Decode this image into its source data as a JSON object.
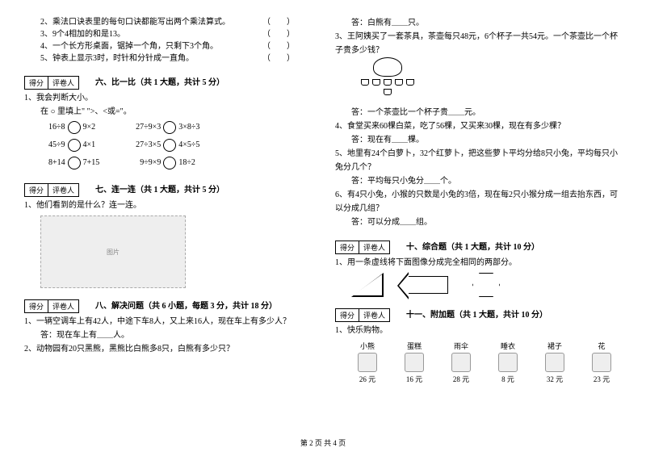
{
  "left": {
    "statements": [
      "2、乘法口诀表里的每句口诀都能写出两个乘法算式。",
      "3、9个4相加的和是13。",
      "4、一个长方形桌面，锯掉一个角，只剩下3个角。",
      "5、钟表上显示3时，时针和分针成一直角。"
    ],
    "sec6": {
      "title": "六、比一比（共 1 大题，共计 5 分）",
      "q1": "1、我会判断大小。",
      "hint": "在 ○ 里填上\" \">、<或=\"。"
    },
    "comp": [
      [
        "16÷8",
        "9×2",
        "27÷9×3",
        "3×8÷3"
      ],
      [
        "45÷9",
        "4×1",
        "27÷3×5",
        "4×5÷5"
      ],
      [
        "8+14",
        "7+15",
        "9÷9×9",
        "18÷2"
      ]
    ],
    "sec7": {
      "title": "七、连一连（共 1 大题，共计 5 分）",
      "q1": "1、他们看到的是什么？连一连。"
    },
    "sec8": {
      "title": "八、解决问题（共 6 小题，每题 3 分，共计 18 分）",
      "q1": "1、一辆空调车上有42人，中途下车8人，又上来16人，现在车上有多少人？",
      "a1": "答：现在车上有＿＿人。",
      "q2": "2、动物园有20只黑熊，黑熊比白熊多8只，白熊有多少只？"
    }
  },
  "right": {
    "a2": "答：白熊有＿＿只。",
    "q3": "3、王阿姨买了一套茶具，茶壶每只48元，6个杯子一共54元。一个茶壶比一个杯子贵多少钱？",
    "a3": "答：一个茶壶比一个杯子贵＿＿元。",
    "q4": "4、食堂买来60棵白菜，吃了56棵，又买来30棵，现在有多少棵？",
    "a4": "答：现在有＿＿棵。",
    "q5": "5、地里有24个白萝卜，32个红萝卜，把这些萝卜平均分给8只小兔，平均每只小兔分几个？",
    "a5": "答：平均每只小兔分＿＿个。",
    "q6": "6、有4只小兔，小猴的只数是小兔的3倍，现在每2只小猴分成一组去抬东西，可以分成几组？",
    "a6": "答：可以分成＿＿组。",
    "sec10": {
      "title": "十、综合题（共 1 大题，共计 10 分）",
      "q1": "1、用一条虚线将下面图像分成完全相同的两部分。"
    },
    "sec11": {
      "title": "十一、附加题（共 1 大题，共计 10 分）",
      "q1": "1、快乐购物。"
    },
    "shop": [
      {
        "name": "小熊",
        "price": "26 元"
      },
      {
        "name": "蛋糕",
        "price": "16 元"
      },
      {
        "name": "雨伞",
        "price": "28 元"
      },
      {
        "name": "睡衣",
        "price": "8 元"
      },
      {
        "name": "裙子",
        "price": "32 元"
      },
      {
        "name": "花",
        "price": "23 元"
      }
    ]
  },
  "score_labels": [
    "得分",
    "评卷人"
  ],
  "footer": "第 2 页 共 4 页"
}
